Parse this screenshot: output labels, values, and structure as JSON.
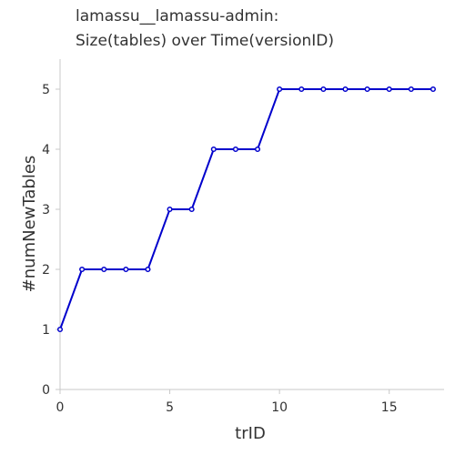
{
  "chart_data": {
    "type": "line",
    "title": [
      "lamassu__lamassu-admin:",
      "Size(tables) over Time(versionID)"
    ],
    "xlabel": "trID",
    "ylabel": "#numNewTables",
    "xlim": [
      0,
      17.5
    ],
    "ylim": [
      0,
      5.5
    ],
    "xticks": [
      0,
      5,
      10,
      15
    ],
    "yticks": [
      0,
      1,
      2,
      3,
      4,
      5
    ],
    "grid": false,
    "series_color": "#0000cc",
    "series": [
      {
        "x": [
          0,
          1,
          2,
          3,
          4,
          5,
          6,
          7,
          8,
          9,
          10,
          11,
          12,
          13,
          14,
          15,
          16,
          17
        ],
        "y": [
          1,
          2,
          2,
          2,
          2,
          3,
          3,
          4,
          4,
          4,
          5,
          5,
          5,
          5,
          5,
          5,
          5,
          5
        ]
      }
    ]
  }
}
